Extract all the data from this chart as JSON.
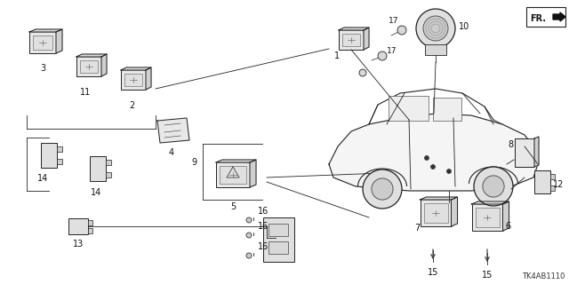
{
  "bg_color": "#ffffff",
  "diagram_code": "TK4AB1110",
  "fr_label": "FR.",
  "line_color": "#222222",
  "label_color": "#111111"
}
